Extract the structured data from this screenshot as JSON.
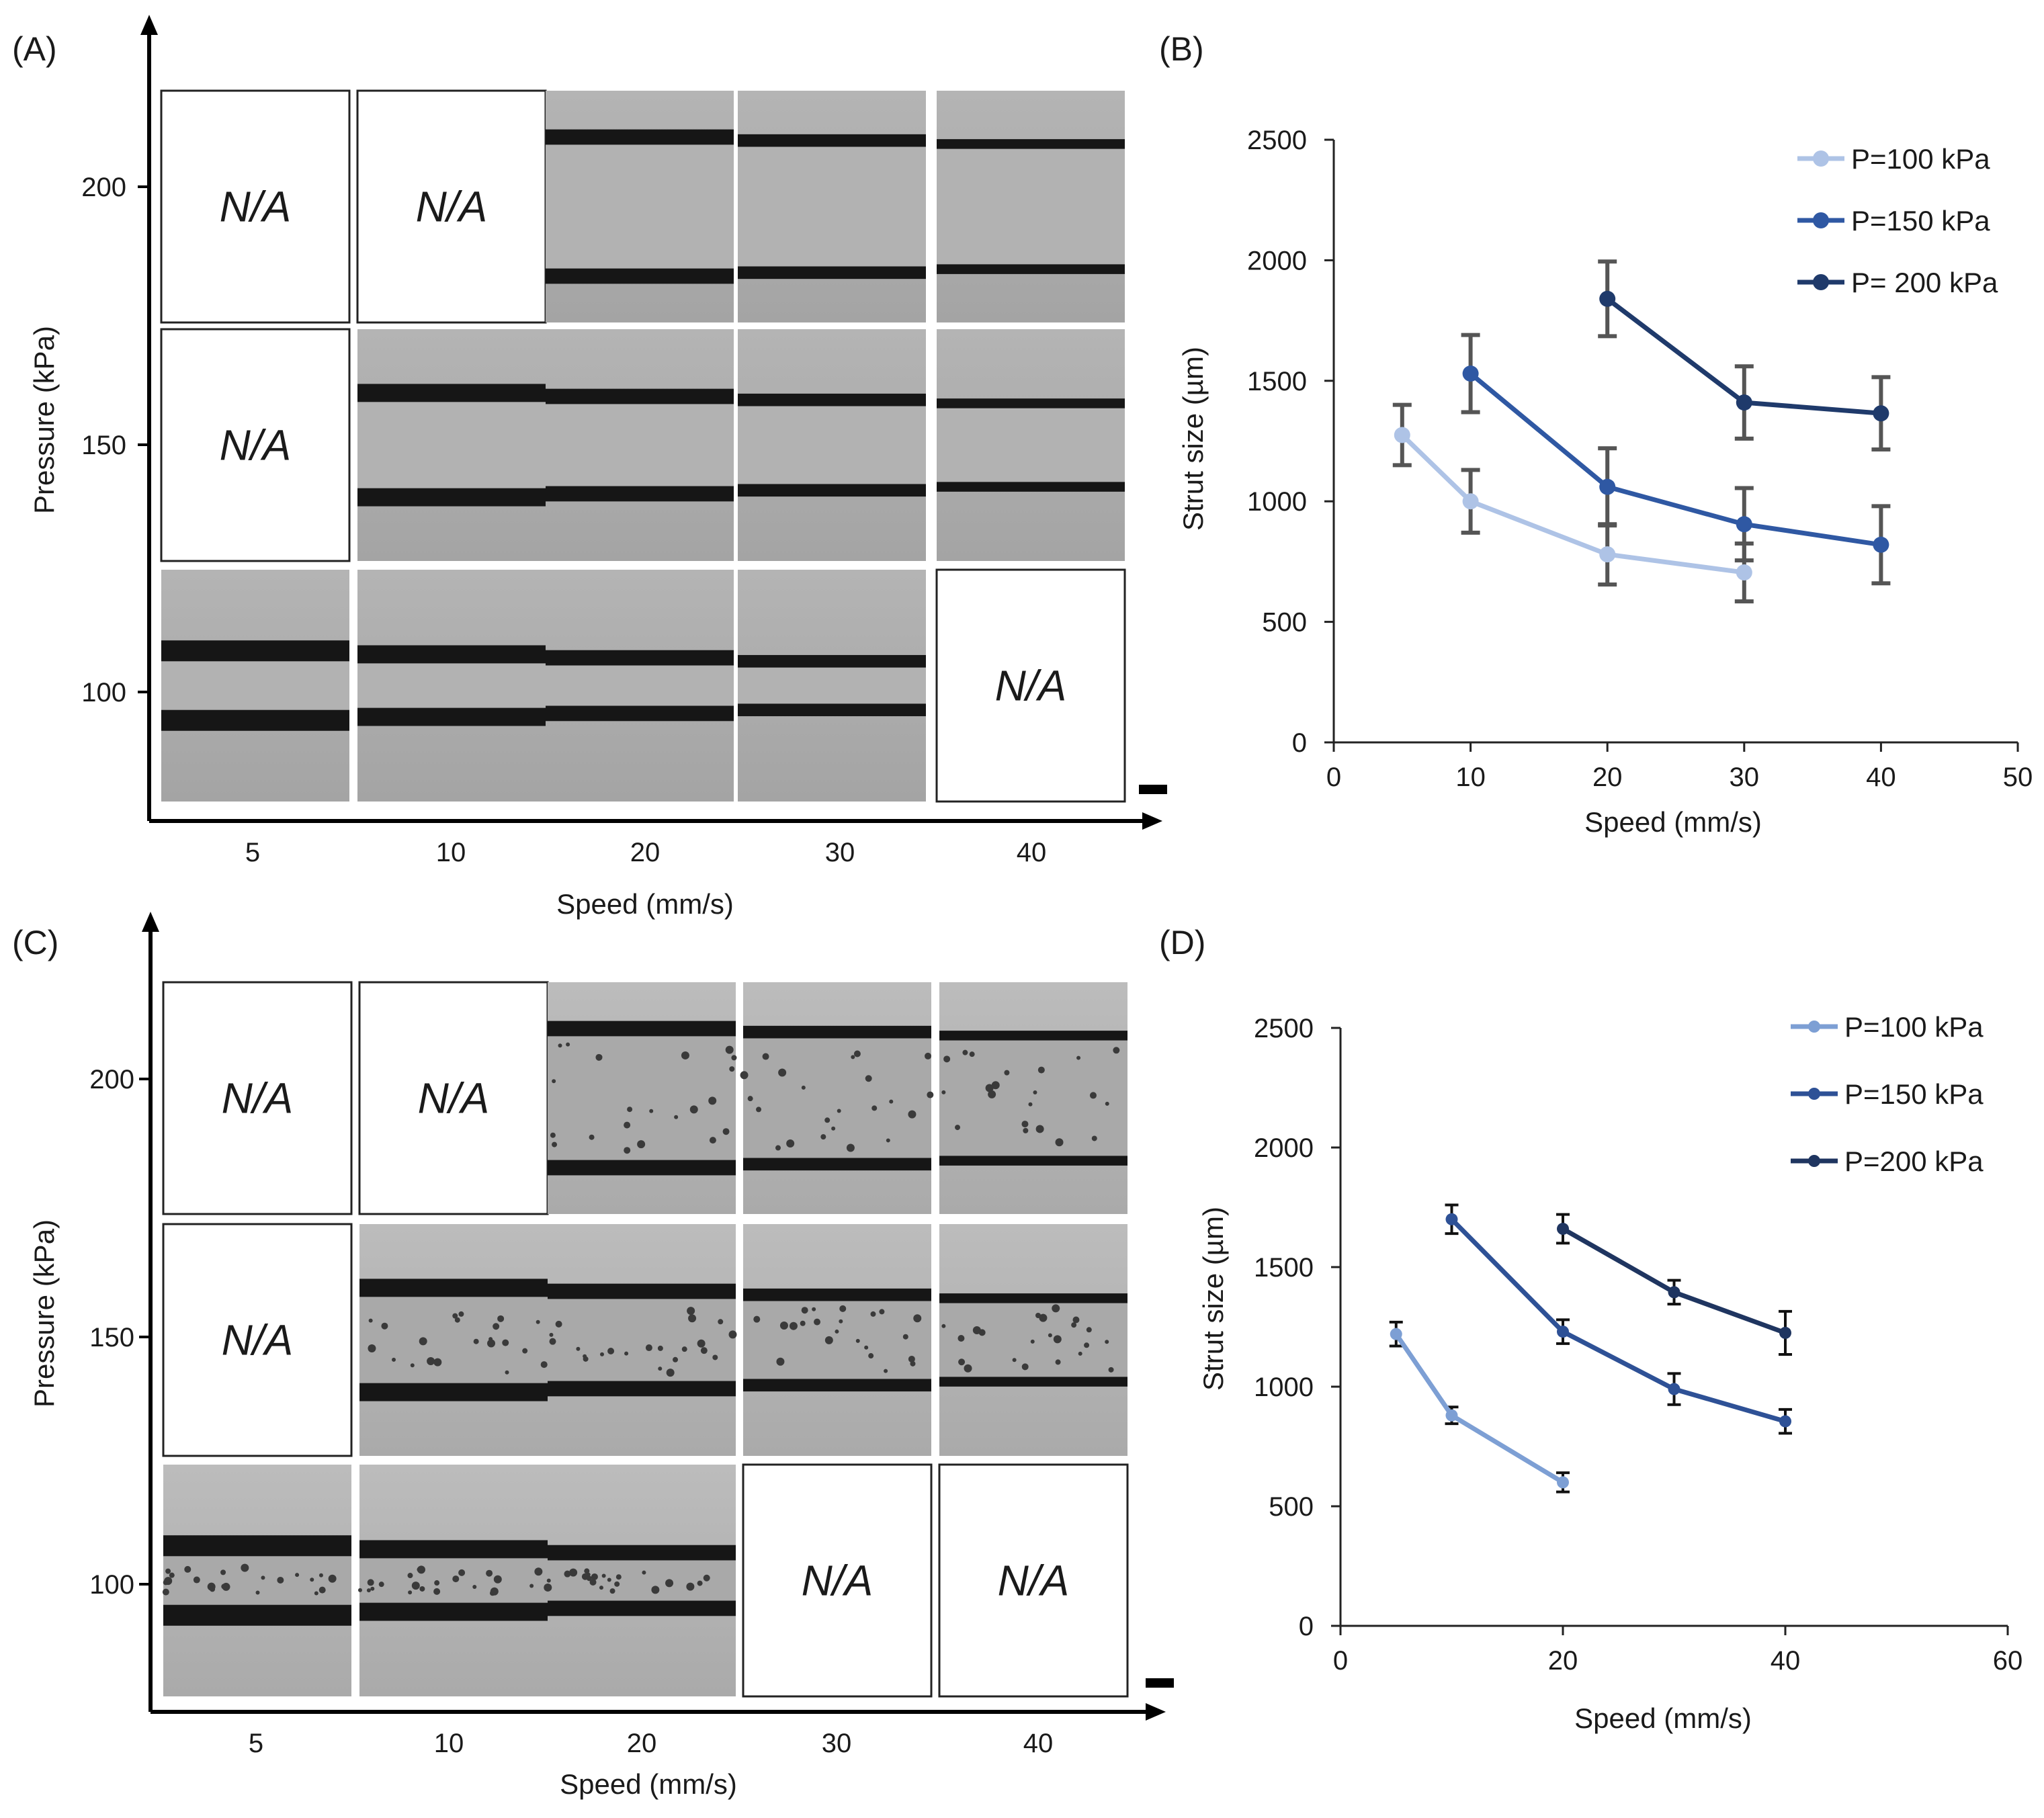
{
  "panels": {
    "A": {
      "label": "(A)",
      "xlabel": "Speed (mm/s)",
      "ylabel": "Pressure (kPa)",
      "x_ticks": [
        "5",
        "10",
        "20",
        "30",
        "40"
      ],
      "y_ticks": [
        "100",
        "150",
        "200"
      ],
      "na_text": "N/A",
      "rows": [
        {
          "pressure": "200",
          "cells": [
            "na",
            "na",
            "img",
            "img",
            "img"
          ]
        },
        {
          "pressure": "150",
          "cells": [
            "na",
            "img",
            "img",
            "img",
            "img"
          ]
        },
        {
          "pressure": "100",
          "cells": [
            "img",
            "img",
            "img",
            "img",
            "na"
          ]
        }
      ]
    },
    "C": {
      "label": "(C)",
      "xlabel": "Speed (mm/s)",
      "ylabel": "Pressure (kPa)",
      "x_ticks": [
        "5",
        "10",
        "20",
        "30",
        "40"
      ],
      "y_ticks": [
        "100",
        "150",
        "200"
      ],
      "na_text": "N/A",
      "rows": [
        {
          "pressure": "200",
          "cells": [
            "na",
            "na",
            "img",
            "img",
            "img"
          ]
        },
        {
          "pressure": "150",
          "cells": [
            "na",
            "img",
            "img",
            "img",
            "img"
          ]
        },
        {
          "pressure": "100",
          "cells": [
            "img",
            "img",
            "img",
            "na",
            "na"
          ]
        }
      ]
    }
  },
  "chart_data": [
    {
      "panel": "B",
      "label": "(B)",
      "type": "line",
      "xlabel": "Speed (mm/s)",
      "ylabel": "Strut size (µm)",
      "xlim": [
        0,
        50
      ],
      "ylim": [
        0,
        2500
      ],
      "x_ticks": [
        0,
        10,
        20,
        30,
        40,
        50
      ],
      "y_ticks": [
        0,
        500,
        1000,
        1500,
        2000,
        2500
      ],
      "legend_position": "top-right",
      "series": [
        {
          "name": "P=100 kPa",
          "color": "#aec3e6",
          "x": [
            5,
            10,
            20,
            30
          ],
          "y": [
            1275,
            1000,
            780,
            705
          ],
          "err": [
            125,
            130,
            125,
            120
          ]
        },
        {
          "name": "P=150 kPa",
          "color": "#2f58a3",
          "x": [
            10,
            20,
            30,
            40
          ],
          "y": [
            1530,
            1060,
            905,
            820
          ],
          "err": [
            160,
            160,
            150,
            160
          ]
        },
        {
          "name": "P= 200 kPa",
          "color": "#1f3a6b",
          "x": [
            20,
            30,
            40
          ],
          "y": [
            1840,
            1410,
            1365
          ],
          "err": [
            155,
            150,
            150
          ]
        }
      ]
    },
    {
      "panel": "D",
      "label": "(D)",
      "type": "line",
      "xlabel": "Speed (mm/s)",
      "ylabel": "Strut size (µm)",
      "xlim": [
        0,
        60
      ],
      "ylim": [
        0,
        2500
      ],
      "x_ticks": [
        0,
        20,
        40,
        60
      ],
      "y_ticks": [
        0,
        500,
        1000,
        1500,
        2000,
        2500
      ],
      "legend_position": "top-right",
      "series": [
        {
          "name": "P=100 kPa",
          "color": "#7d9fd4",
          "x": [
            5,
            10,
            20
          ],
          "y": [
            1220,
            880,
            600
          ],
          "err": [
            50,
            35,
            40
          ]
        },
        {
          "name": "P=150 kPa",
          "color": "#2e5196",
          "x": [
            10,
            20,
            30,
            40
          ],
          "y": [
            1700,
            1230,
            990,
            855
          ],
          "err": [
            60,
            50,
            65,
            50
          ]
        },
        {
          "name": "P=200 kPa",
          "color": "#1f3560",
          "x": [
            20,
            30,
            40
          ],
          "y": [
            1660,
            1395,
            1225
          ],
          "err": [
            60,
            50,
            90
          ]
        }
      ]
    }
  ]
}
